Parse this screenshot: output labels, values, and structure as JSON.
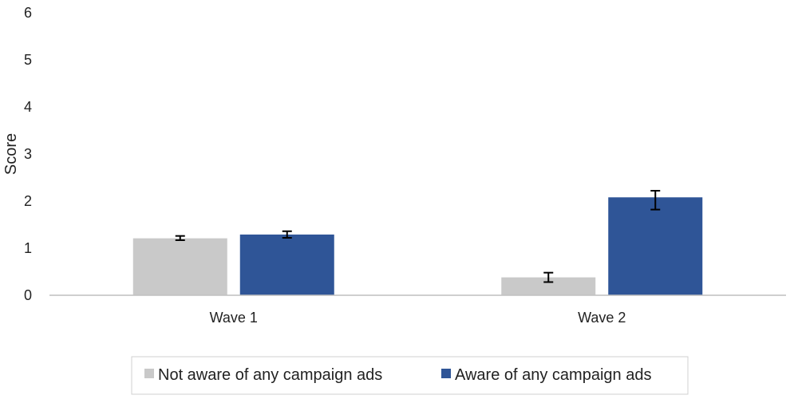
{
  "chart_data": {
    "type": "bar",
    "title": "",
    "xlabel": "",
    "ylabel": "Score",
    "ylim": [
      0,
      6
    ],
    "yticks": [
      0,
      1,
      2,
      3,
      4,
      5,
      6
    ],
    "grid": false,
    "legend_position": "bottom",
    "categories": [
      "Wave 1",
      "Wave 2"
    ],
    "series": [
      {
        "name": "Not aware of any campaign ads",
        "color": "#c9c9c9",
        "values": [
          1.21,
          0.38
        ],
        "error_low": [
          1.17,
          0.28
        ],
        "error_high": [
          1.26,
          0.48
        ]
      },
      {
        "name": "Aware of any campaign ads",
        "color": "#2f5597",
        "values": [
          1.29,
          2.08
        ],
        "error_low": [
          1.22,
          1.82
        ],
        "error_high": [
          1.36,
          2.22
        ]
      }
    ]
  }
}
